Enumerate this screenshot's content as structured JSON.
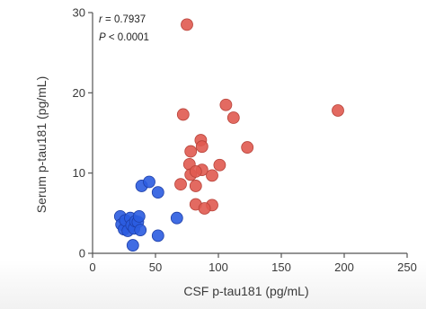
{
  "chart_data": {
    "type": "scatter",
    "title": "",
    "xlabel": "CSF p-tau181 (pg/mL)",
    "ylabel": "Serum p-tau181 (pg/mL)",
    "xlim": [
      0,
      250
    ],
    "ylim": [
      0,
      30
    ],
    "xticks": [
      "0",
      "50",
      "100",
      "150",
      "200",
      "250"
    ],
    "yticks": [
      "0",
      "10",
      "20",
      "30"
    ],
    "grid": false,
    "legend": "none",
    "annotations": {
      "r_symbol": "r",
      "r_value": " = 0.7937",
      "p_symbol": "P",
      "p_value": " < 0.0001"
    },
    "series": [
      {
        "color": "#2b5ce0",
        "points": [
          [
            22,
            4.6
          ],
          [
            23,
            3.6
          ],
          [
            25,
            3.0
          ],
          [
            26,
            4.1
          ],
          [
            28,
            2.8
          ],
          [
            30,
            4.4
          ],
          [
            31,
            3.5
          ],
          [
            33,
            3.1
          ],
          [
            34,
            4.0
          ],
          [
            36,
            3.9
          ],
          [
            37,
            4.6
          ],
          [
            38,
            2.9
          ],
          [
            32,
            1.0
          ],
          [
            39,
            8.4
          ],
          [
            45,
            8.9
          ],
          [
            52,
            7.6
          ],
          [
            52,
            2.2
          ],
          [
            67,
            4.4
          ]
        ]
      },
      {
        "color": "#e05a50",
        "points": [
          [
            75,
            28.5
          ],
          [
            72,
            17.3
          ],
          [
            106,
            18.5
          ],
          [
            112,
            16.9
          ],
          [
            195,
            17.8
          ],
          [
            86,
            14.1
          ],
          [
            87,
            13.3
          ],
          [
            78,
            12.7
          ],
          [
            123,
            13.2
          ],
          [
            77,
            11.1
          ],
          [
            87,
            10.4
          ],
          [
            101,
            11.0
          ],
          [
            70,
            8.6
          ],
          [
            78,
            9.8
          ],
          [
            82,
            10.2
          ],
          [
            95,
            9.7
          ],
          [
            82,
            8.4
          ],
          [
            95,
            6.0
          ],
          [
            82,
            6.1
          ],
          [
            89,
            5.6
          ]
        ]
      }
    ]
  }
}
